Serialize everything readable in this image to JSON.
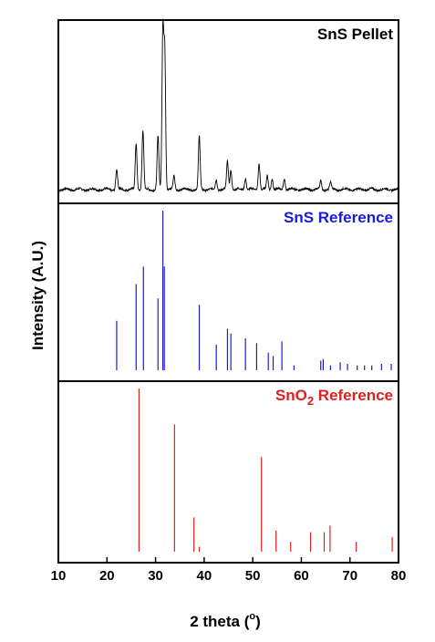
{
  "chart_data": {
    "type": "stacked-line-and-stick",
    "xlabel": "2 theta (",
    "xlabel_degree": "o",
    "xlabel_close": ")",
    "ylabel": "Intensity (A.U.)",
    "xlim": [
      10,
      80
    ],
    "xticks": [
      10,
      20,
      30,
      40,
      50,
      60,
      70,
      80
    ],
    "grid": false,
    "panels": [
      {
        "id": "pellet",
        "label": "SnS Pellet",
        "color": "#000000",
        "kind": "line",
        "peaks": [
          {
            "x": 22.0,
            "h": 0.12
          },
          {
            "x": 26.0,
            "h": 0.28
          },
          {
            "x": 27.4,
            "h": 0.36
          },
          {
            "x": 30.5,
            "h": 0.32
          },
          {
            "x": 31.5,
            "h": 0.95
          },
          {
            "x": 31.9,
            "h": 0.82
          },
          {
            "x": 33.8,
            "h": 0.08
          },
          {
            "x": 39.0,
            "h": 0.32
          },
          {
            "x": 42.5,
            "h": 0.06
          },
          {
            "x": 44.8,
            "h": 0.17
          },
          {
            "x": 45.5,
            "h": 0.12
          },
          {
            "x": 48.5,
            "h": 0.07
          },
          {
            "x": 51.3,
            "h": 0.16
          },
          {
            "x": 53.0,
            "h": 0.08
          },
          {
            "x": 54.0,
            "h": 0.07
          },
          {
            "x": 56.5,
            "h": 0.07
          },
          {
            "x": 64.0,
            "h": 0.05
          },
          {
            "x": 66.0,
            "h": 0.04
          }
        ]
      },
      {
        "id": "sns-ref",
        "label": "SnS Reference",
        "color": "#1a1adc",
        "kind": "stick",
        "sticks": [
          {
            "x": 22.0,
            "h": 0.31
          },
          {
            "x": 26.0,
            "h": 0.54
          },
          {
            "x": 27.5,
            "h": 0.65
          },
          {
            "x": 30.5,
            "h": 0.45
          },
          {
            "x": 31.5,
            "h": 1.0
          },
          {
            "x": 31.8,
            "h": 0.65
          },
          {
            "x": 39.0,
            "h": 0.41
          },
          {
            "x": 42.5,
            "h": 0.16
          },
          {
            "x": 44.8,
            "h": 0.26
          },
          {
            "x": 45.5,
            "h": 0.23
          },
          {
            "x": 48.5,
            "h": 0.2
          },
          {
            "x": 50.8,
            "h": 0.17
          },
          {
            "x": 53.2,
            "h": 0.11
          },
          {
            "x": 54.2,
            "h": 0.09
          },
          {
            "x": 56.0,
            "h": 0.18
          },
          {
            "x": 58.5,
            "h": 0.03
          },
          {
            "x": 64.0,
            "h": 0.06
          },
          {
            "x": 64.5,
            "h": 0.07
          },
          {
            "x": 66.0,
            "h": 0.03
          },
          {
            "x": 68.0,
            "h": 0.05
          },
          {
            "x": 69.5,
            "h": 0.04
          },
          {
            "x": 71.5,
            "h": 0.03
          },
          {
            "x": 73.0,
            "h": 0.03
          },
          {
            "x": 74.5,
            "h": 0.03
          },
          {
            "x": 76.5,
            "h": 0.04
          },
          {
            "x": 78.5,
            "h": 0.04
          }
        ]
      },
      {
        "id": "sno2-ref",
        "label": "SnO",
        "label_sub": "2",
        "label_tail": " Reference",
        "color": "#e02020",
        "kind": "stick",
        "sticks": [
          {
            "x": 26.6,
            "h": 1.0
          },
          {
            "x": 33.9,
            "h": 0.78
          },
          {
            "x": 37.9,
            "h": 0.21
          },
          {
            "x": 39.0,
            "h": 0.03
          },
          {
            "x": 51.8,
            "h": 0.58
          },
          {
            "x": 54.8,
            "h": 0.13
          },
          {
            "x": 57.8,
            "h": 0.06
          },
          {
            "x": 61.9,
            "h": 0.12
          },
          {
            "x": 64.7,
            "h": 0.12
          },
          {
            "x": 65.9,
            "h": 0.16
          },
          {
            "x": 71.3,
            "h": 0.06
          },
          {
            "x": 78.7,
            "h": 0.09
          }
        ]
      }
    ]
  }
}
